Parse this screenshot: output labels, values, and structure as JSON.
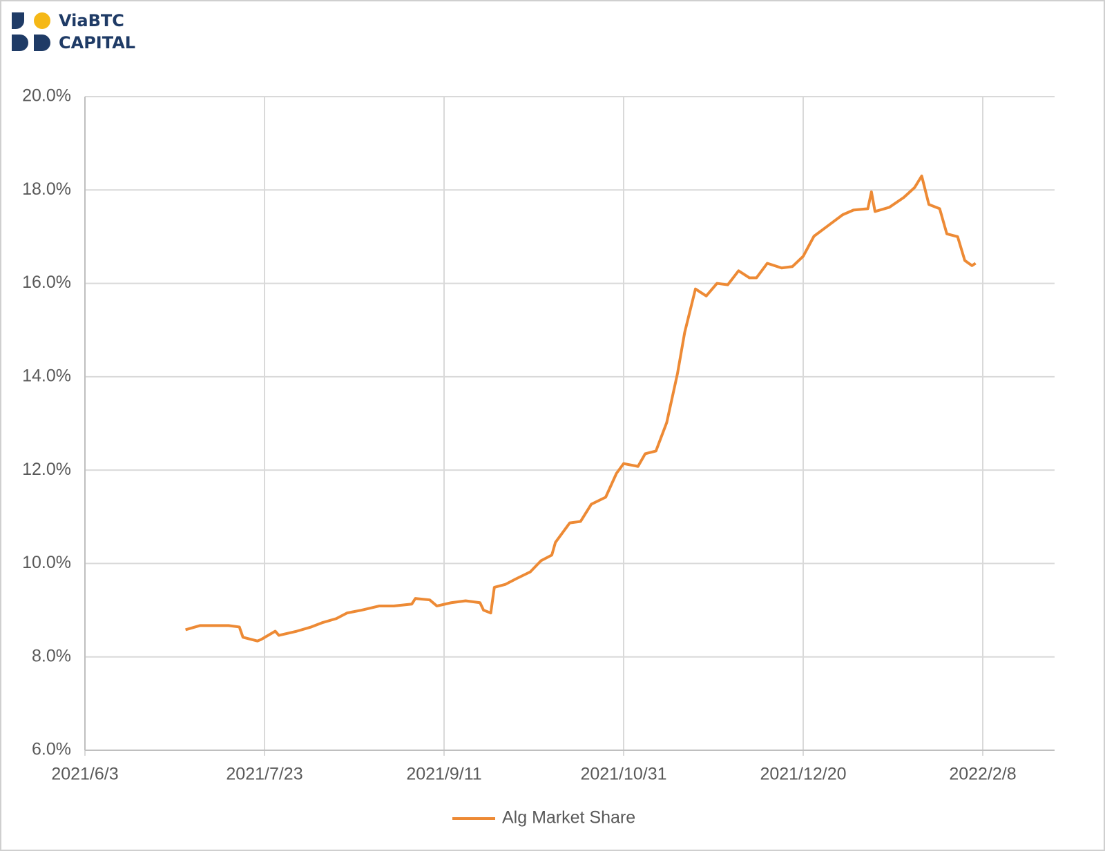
{
  "logo": {
    "line1": "ViaBTC",
    "line2": "CAPITAL"
  },
  "chart_data": {
    "type": "line",
    "x": [
      "2021/7/1",
      "2021/7/5",
      "2021/7/9",
      "2021/7/13",
      "2021/7/16",
      "2021/7/17",
      "2021/7/21",
      "2021/7/22",
      "2021/7/26",
      "2021/7/27",
      "2021/8/1",
      "2021/8/5",
      "2021/8/8",
      "2021/8/12",
      "2021/8/15",
      "2021/8/19",
      "2021/8/24",
      "2021/8/28",
      "2021/9/2",
      "2021/9/3",
      "2021/9/7",
      "2021/9/9",
      "2021/9/13",
      "2021/9/17",
      "2021/9/21",
      "2021/9/22",
      "2021/9/24",
      "2021/9/25",
      "2021/9/28",
      "2021/10/1",
      "2021/10/5",
      "2021/10/8",
      "2021/10/11",
      "2021/10/12",
      "2021/10/16",
      "2021/10/19",
      "2021/10/22",
      "2021/10/26",
      "2021/10/29",
      "2021/10/31",
      "2021/11/4",
      "2021/11/6",
      "2021/11/9",
      "2021/11/12",
      "2021/11/15",
      "2021/11/17",
      "2021/11/20",
      "2021/11/23",
      "2021/11/26",
      "2021/11/29",
      "2021/12/2",
      "2021/12/5",
      "2021/12/7",
      "2021/12/10",
      "2021/12/14",
      "2021/12/17",
      "2021/12/20",
      "2021/12/23",
      "2021/12/27",
      "2021/12/31",
      "2022/1/3",
      "2022/1/7",
      "2022/1/8",
      "2022/1/9",
      "2022/1/13",
      "2022/1/17",
      "2022/1/20",
      "2022/1/22",
      "2022/1/24",
      "2022/1/27",
      "2022/1/29",
      "2022/2/1",
      "2022/2/3",
      "2022/2/5",
      "2022/2/6"
    ],
    "series": [
      {
        "name": "Alg Market Share",
        "color": "#ed8a35",
        "values": [
          8.58,
          8.67,
          8.67,
          8.67,
          8.64,
          8.42,
          8.34,
          8.37,
          8.55,
          8.46,
          8.55,
          8.64,
          8.73,
          8.82,
          8.94,
          9.0,
          9.09,
          9.09,
          9.13,
          9.25,
          9.22,
          9.09,
          9.16,
          9.2,
          9.16,
          9.0,
          8.94,
          9.49,
          9.55,
          9.67,
          9.82,
          10.06,
          10.18,
          10.45,
          10.87,
          10.9,
          11.27,
          11.42,
          11.93,
          12.14,
          12.08,
          12.35,
          12.41,
          13.02,
          14.07,
          14.95,
          15.88,
          15.73,
          16.0,
          15.97,
          16.27,
          16.12,
          16.12,
          16.43,
          16.33,
          16.36,
          16.58,
          17.01,
          17.24,
          17.47,
          17.57,
          17.6,
          17.96,
          17.54,
          17.63,
          17.84,
          18.05,
          18.3,
          17.69,
          17.6,
          17.06,
          17.0,
          16.49,
          16.38,
          16.43
        ]
      }
    ],
    "xlim": [
      "2021/6/3",
      "2022/2/28"
    ],
    "xticks": [
      "2021/6/3",
      "2021/7/23",
      "2021/9/11",
      "2021/10/31",
      "2021/12/20",
      "2022/2/8"
    ],
    "ylim": [
      6,
      20
    ],
    "yticks": [
      {
        "value": 6,
        "label": "6.0%"
      },
      {
        "value": 8,
        "label": "8.0%"
      },
      {
        "value": 10,
        "label": "10.0%"
      },
      {
        "value": 12,
        "label": "12.0%"
      },
      {
        "value": 14,
        "label": "14.0%"
      },
      {
        "value": 16,
        "label": "16.0%"
      },
      {
        "value": 18,
        "label": "18.0%"
      },
      {
        "value": 20,
        "label": "20.0%"
      }
    ],
    "grid": true,
    "legend": "bottom"
  }
}
